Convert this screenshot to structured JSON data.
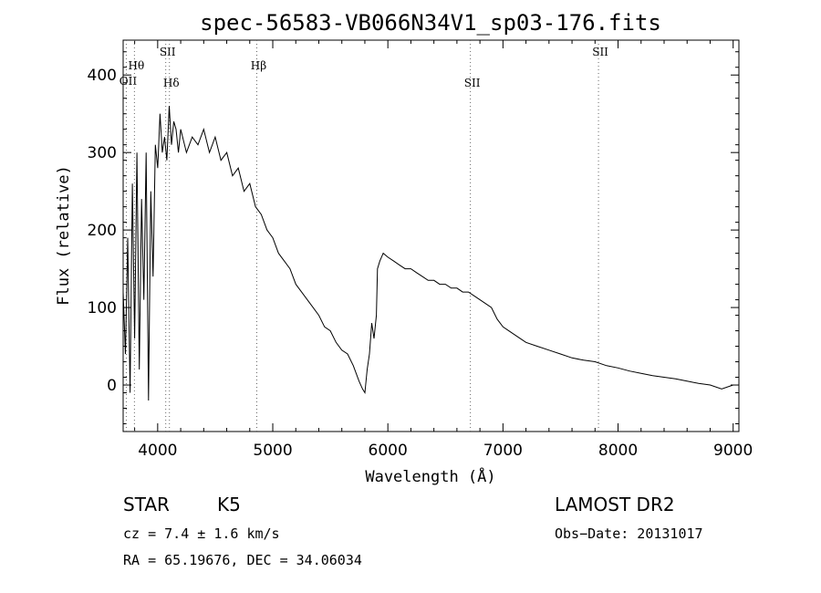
{
  "chart_data": {
    "type": "line",
    "title": "spec-56583-VB066N34V1_sp03-176.fits",
    "xlabel": "Wavelength (Å)",
    "ylabel": "Flux (relative)",
    "xlim": [
      3700,
      9050
    ],
    "ylim": [
      -60,
      445
    ],
    "xticks": [
      4000,
      5000,
      6000,
      7000,
      8000,
      9000
    ],
    "yticks": [
      0,
      100,
      200,
      300,
      400
    ],
    "grid": false,
    "series": [
      {
        "x": [
          3700,
          3720,
          3740,
          3760,
          3780,
          3800,
          3820,
          3840,
          3860,
          3880,
          3900,
          3920,
          3940,
          3960,
          3980,
          4000,
          4020,
          4040,
          4060,
          4080,
          4100,
          4120,
          4140,
          4160,
          4180,
          4200,
          4250,
          4300,
          4350,
          4400,
          4450,
          4500,
          4550,
          4600,
          4650,
          4700,
          4750,
          4800,
          4850,
          4900,
          4950,
          5000,
          5050,
          5100,
          5150,
          5200,
          5250,
          5300,
          5350,
          5400,
          5450,
          5500,
          5550,
          5600,
          5650,
          5700,
          5750,
          5780,
          5800,
          5820,
          5840,
          5860,
          5880,
          5900,
          5910,
          5930,
          5960,
          6000,
          6050,
          6100,
          6150,
          6200,
          6250,
          6300,
          6350,
          6400,
          6450,
          6500,
          6550,
          6600,
          6650,
          6700,
          6750,
          6800,
          6850,
          6900,
          6950,
          7000,
          7050,
          7100,
          7150,
          7200,
          7300,
          7400,
          7500,
          7600,
          7700,
          7800,
          7900,
          8000,
          8100,
          8200,
          8300,
          8400,
          8500,
          8600,
          8700,
          8800,
          8900,
          9000
        ],
        "y": [
          120,
          40,
          190,
          -10,
          260,
          60,
          300,
          20,
          240,
          110,
          300,
          -20,
          250,
          140,
          310,
          280,
          350,
          300,
          320,
          290,
          360,
          310,
          340,
          330,
          300,
          330,
          300,
          320,
          310,
          330,
          300,
          320,
          290,
          300,
          270,
          280,
          250,
          260,
          230,
          220,
          200,
          190,
          170,
          160,
          150,
          130,
          120,
          110,
          100,
          90,
          75,
          70,
          55,
          45,
          40,
          25,
          5,
          -5,
          -10,
          20,
          40,
          80,
          60,
          90,
          150,
          160,
          170,
          165,
          160,
          155,
          150,
          150,
          145,
          140,
          135,
          135,
          130,
          130,
          125,
          125,
          120,
          120,
          115,
          110,
          105,
          100,
          85,
          75,
          70,
          65,
          60,
          55,
          50,
          45,
          40,
          35,
          32,
          30,
          25,
          22,
          18,
          15,
          12,
          10,
          8,
          5,
          2,
          0,
          -5,
          0
        ]
      }
    ],
    "annotations": [
      {
        "label": "OII",
        "x": 3727
      },
      {
        "label": "Hθ",
        "x": 3798
      },
      {
        "label": "SII",
        "x": 4070
      },
      {
        "label": "Hδ",
        "x": 4102
      },
      {
        "label": "Hβ",
        "x": 4861
      },
      {
        "label": "SII",
        "x": 6717
      },
      {
        "label": "SII",
        "x": 7830
      }
    ]
  },
  "info": {
    "object_class": "STAR",
    "subclass": "K5",
    "survey": "LAMOST DR2",
    "cz": "cz = 7.4 ± 1.6 km/s",
    "obs_date": "Obs−Date: 20131017",
    "radec": "RA =  65.19676, DEC =  34.06034"
  }
}
